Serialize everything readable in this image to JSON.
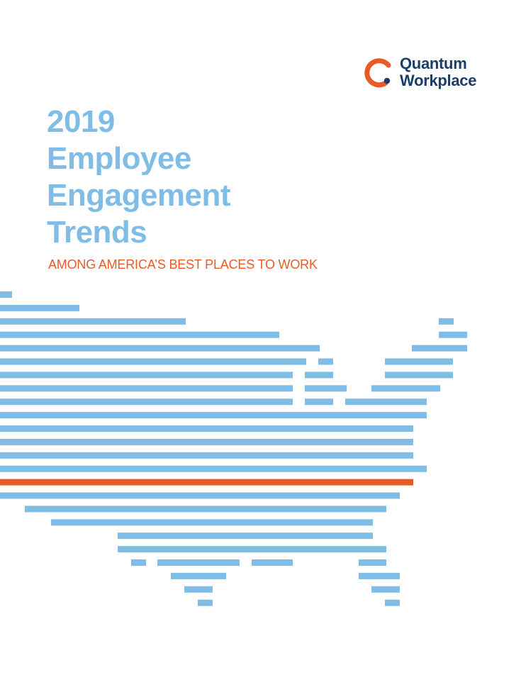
{
  "logo": {
    "line1": "Quantum",
    "line2": "Workplace",
    "icon": "quantum-q-logo-icon",
    "ring_color": "#e85a26",
    "text_color": "#1b3d6d"
  },
  "title": {
    "line1": "2019",
    "line2": "Employee",
    "line3": "Engagement",
    "line4": "Trends"
  },
  "subtitle": "AMONG AMERICA’S BEST PLACES TO WORK",
  "colors": {
    "title": "#7fbde6",
    "accent": "#e85a26",
    "map_stripes": "#7fbde6",
    "highlight_stripe": "#e85a26"
  },
  "illustration": "usa-stripe-map"
}
